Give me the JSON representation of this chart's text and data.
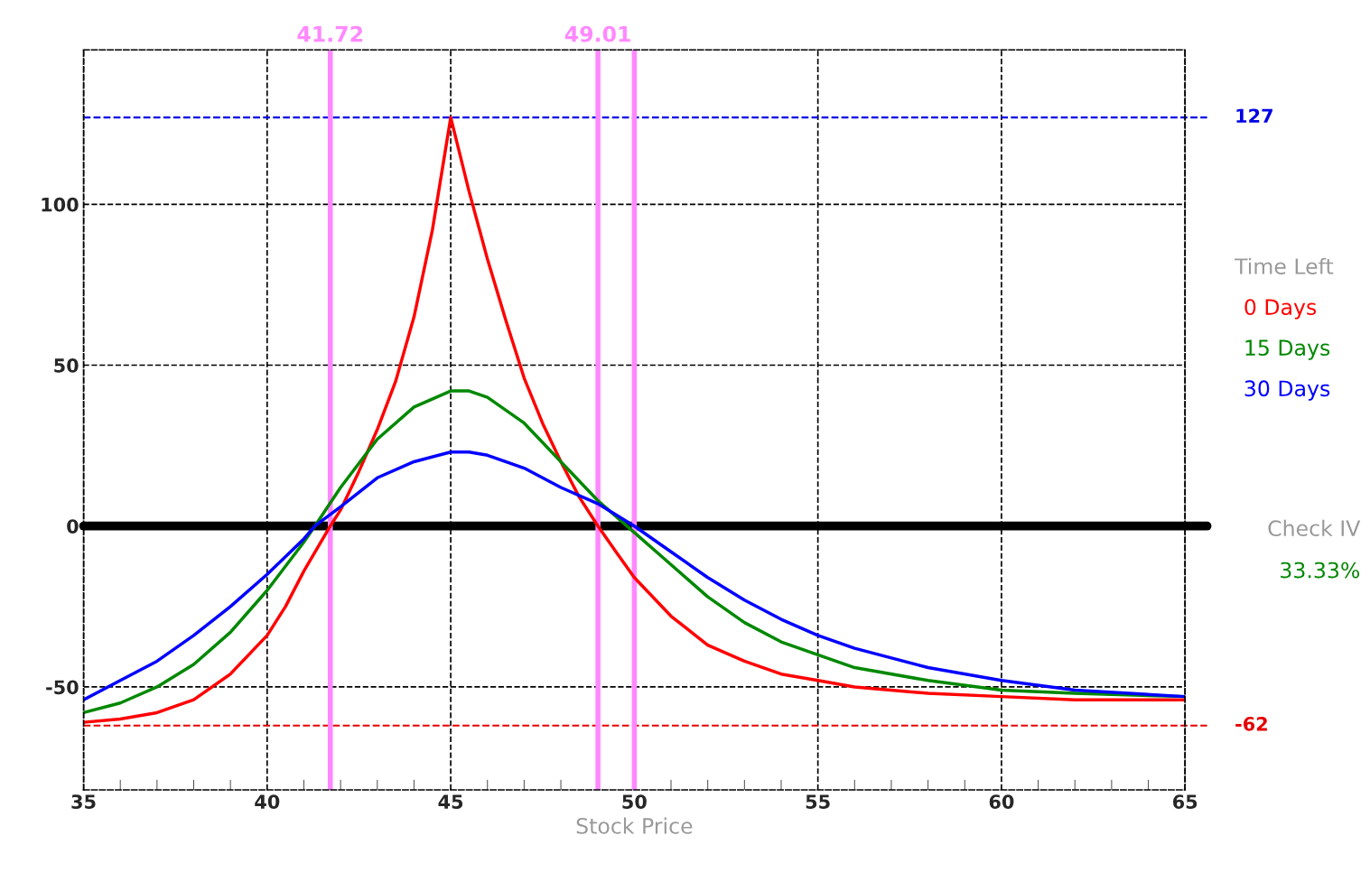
{
  "chart_data": {
    "type": "line",
    "xlabel": "Stock Price",
    "legend_title": "Time Left",
    "legend": "right",
    "xlim": [
      35,
      65
    ],
    "xticks": [
      35,
      40,
      45,
      50,
      55,
      60,
      65
    ],
    "ylim": [
      -82,
      148
    ],
    "yticks": [
      -50,
      0,
      50,
      100
    ],
    "grid": true,
    "line_style": "solid",
    "series": [
      {
        "name": "0 Days",
        "color": "#ff0000",
        "x": [
          35,
          36,
          37,
          38,
          39,
          40,
          40.5,
          41,
          41.72,
          42,
          42.5,
          43,
          43.5,
          44,
          44.5,
          45,
          45.5,
          46,
          46.5,
          47,
          47.5,
          48,
          48.5,
          49.01,
          49.5,
          50,
          51,
          52,
          53,
          54,
          55,
          56,
          58,
          60,
          62,
          65
        ],
        "values": [
          -61,
          -60,
          -58,
          -54,
          -46,
          -34,
          -25,
          -14,
          0,
          5,
          17,
          30,
          45,
          65,
          92,
          127,
          104,
          83,
          64,
          46,
          32,
          20,
          9,
          0,
          -8,
          -16,
          -28,
          -37,
          -42,
          -46,
          -48,
          -50,
          -52,
          -53,
          -54,
          -54
        ]
      },
      {
        "name": "15 Days",
        "color": "#008800",
        "x": [
          35,
          36,
          37,
          38,
          39,
          40,
          41,
          41.3,
          42,
          43,
          44,
          45,
          45.5,
          46,
          47,
          48,
          49,
          50,
          51,
          52,
          53,
          54,
          55,
          56,
          58,
          60,
          62,
          65
        ],
        "values": [
          -58,
          -55,
          -50,
          -43,
          -33,
          -20,
          -5,
          0,
          12,
          27,
          37,
          42,
          42,
          40,
          32,
          20,
          8,
          -2,
          -12,
          -22,
          -30,
          -36,
          -40,
          -44,
          -48,
          -51,
          -52,
          -53
        ]
      },
      {
        "name": "30 Days",
        "color": "#0000ff",
        "x": [
          35,
          36,
          37,
          38,
          39,
          40,
          41,
          41.3,
          42,
          43,
          44,
          45,
          45.5,
          46,
          47,
          48,
          49,
          50,
          51,
          52,
          53,
          54,
          55,
          56,
          58,
          60,
          62,
          65
        ],
        "values": [
          -54,
          -48,
          -42,
          -34,
          -25,
          -15,
          -4,
          0,
          6,
          15,
          20,
          23,
          23,
          22,
          18,
          12,
          7,
          0,
          -8,
          -16,
          -23,
          -29,
          -34,
          -38,
          -44,
          -48,
          -51,
          -53
        ]
      }
    ],
    "ref_lines": [
      {
        "axis": "y",
        "value": 127,
        "label": "127",
        "color": "#0000e6",
        "line_style": "dashed"
      },
      {
        "axis": "y",
        "value": -62,
        "label": "-62",
        "color": "#e60000",
        "line_style": "dashed"
      },
      {
        "axis": "y",
        "value": 0,
        "label": null,
        "color": "#000000",
        "line_style": "solid"
      },
      {
        "axis": "x",
        "value": 41.72,
        "label": "41.72",
        "color": "#ff88ff",
        "line_style": "solid"
      },
      {
        "axis": "x",
        "value": 49.01,
        "label": "49.01",
        "color": "#ff88ff",
        "line_style": "solid"
      },
      {
        "axis": "x",
        "value": 50,
        "label": null,
        "color": "#ff88ff",
        "line_style": "solid"
      }
    ],
    "annotations": [
      "Check IV",
      "33.33%"
    ]
  }
}
